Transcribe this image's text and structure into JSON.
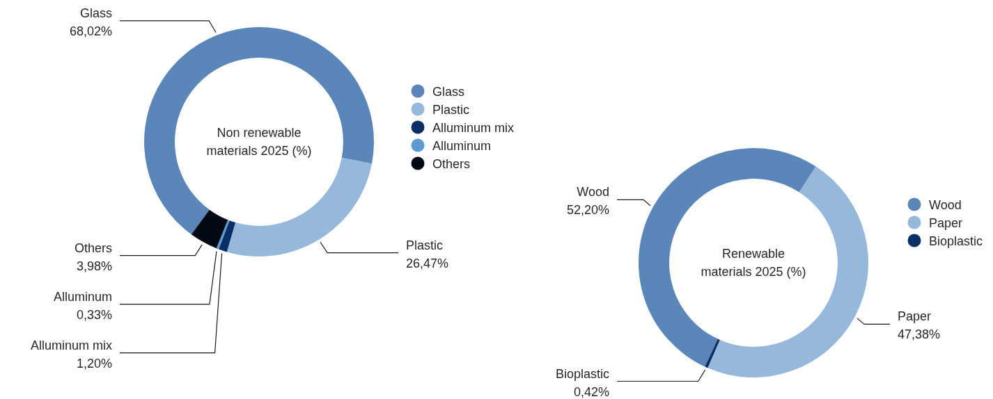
{
  "chart_data": [
    {
      "type": "donut",
      "title": "Non renewable materials 2025 (%)",
      "categories": [
        "Glass",
        "Plastic",
        "Alluminum mix",
        "Alluminum",
        "Others"
      ],
      "values": [
        68.02,
        26.47,
        1.2,
        0.33,
        3.98
      ],
      "value_labels": [
        "68,02%",
        "26,47%",
        "1,20%",
        "0,33%",
        "3,98%"
      ],
      "colors": [
        "#5b86b9",
        "#95b8db",
        "#0a2f66",
        "#5b9bd3",
        "#030a14"
      ],
      "legend": "right"
    },
    {
      "type": "donut",
      "title": "Renewable materials 2025 (%)",
      "categories": [
        "Wood",
        "Paper",
        "Bioplastic"
      ],
      "values": [
        52.2,
        47.38,
        0.42
      ],
      "value_labels": [
        "52,20%",
        "47,38%",
        "0,42%"
      ],
      "colors": [
        "#5b86b9",
        "#95b8db",
        "#0a2f66"
      ],
      "legend": "right"
    }
  ]
}
